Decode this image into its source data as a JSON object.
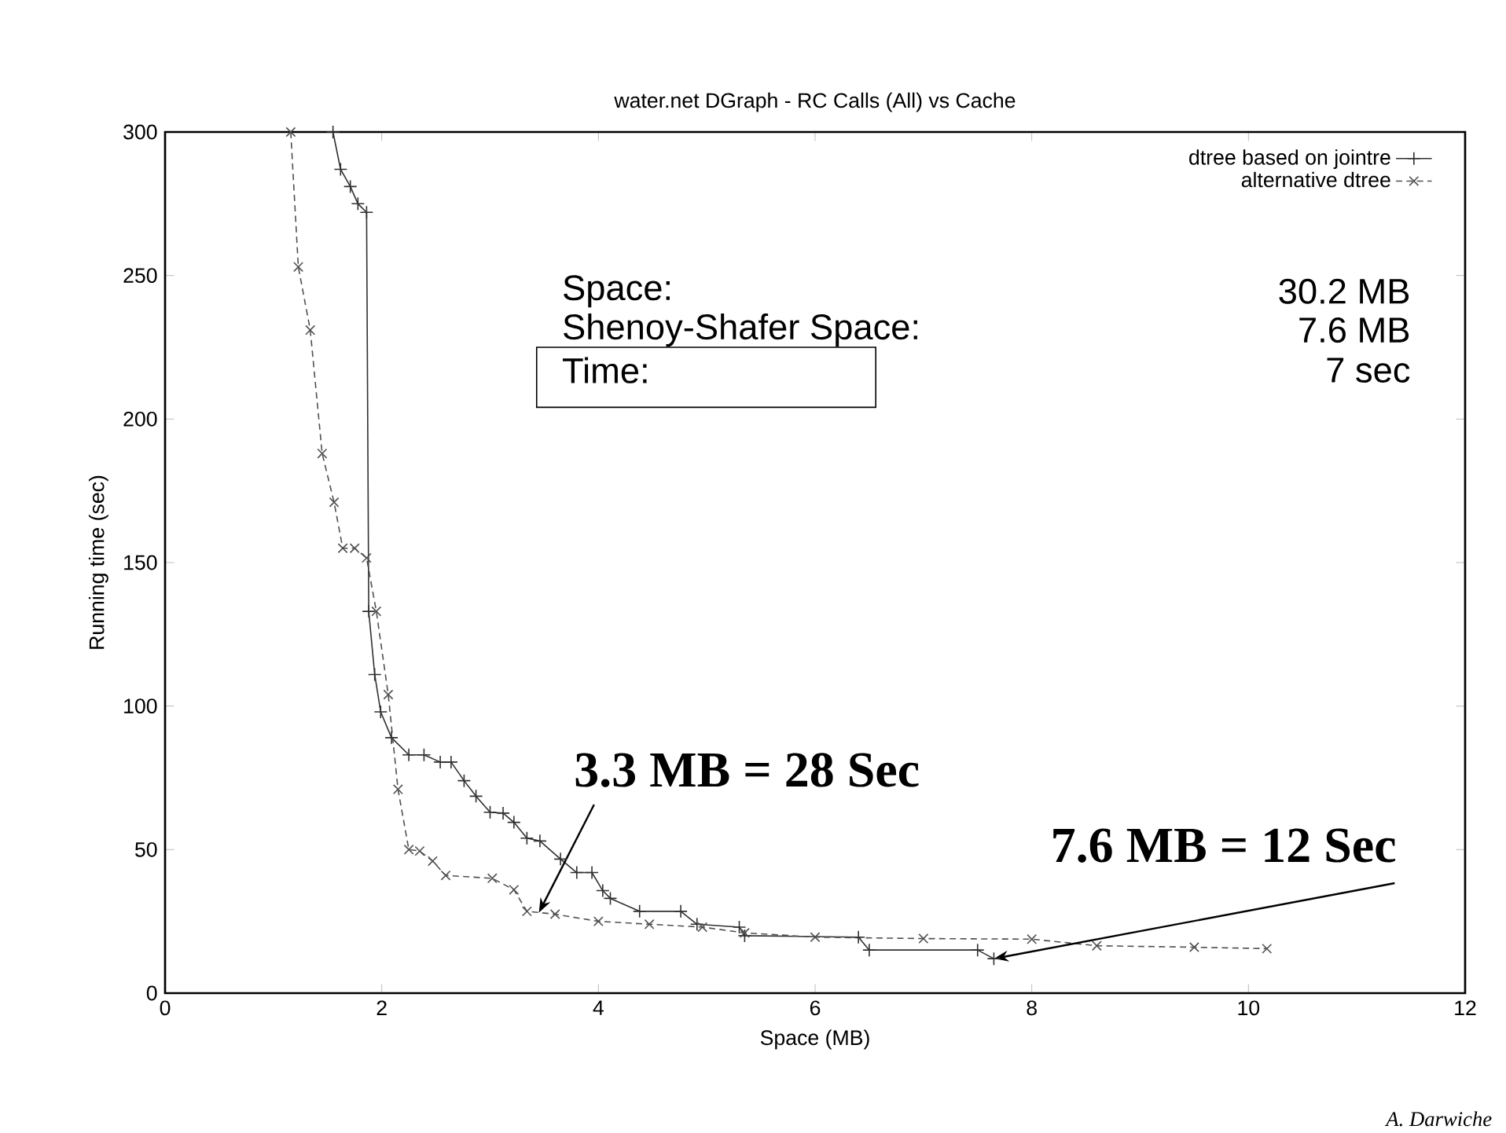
{
  "chart_data": {
    "type": "line",
    "title": "water.net DGraph - RC Calls (All) vs Cache",
    "xlabel": "Space (MB)",
    "ylabel": "Running time (sec)",
    "xlim": [
      0,
      12
    ],
    "xticks": [
      0,
      2,
      4,
      6,
      8,
      10,
      12
    ],
    "ylim": [
      0,
      300
    ],
    "yticks": [
      0,
      50,
      100,
      150,
      200,
      250,
      300
    ],
    "legend": "top right",
    "grid": false,
    "series": [
      {
        "name": "dtree based on jointre",
        "color": "#303030",
        "marker": "plus",
        "line_style": "solid",
        "x": [
          1.55,
          1.62,
          1.71,
          1.78,
          1.86,
          1.88,
          1.935,
          1.99,
          2.09,
          2.25,
          2.39,
          2.54,
          2.64,
          2.76,
          2.87,
          3.0,
          3.12,
          3.22,
          3.34,
          3.46,
          3.65,
          3.8,
          3.94,
          4.04,
          4.11,
          4.38,
          4.76,
          4.91,
          5.3,
          5.35,
          6.4,
          6.5,
          7.5,
          7.65
        ],
        "values": [
          300,
          287,
          281,
          275,
          272,
          133,
          111,
          98,
          89,
          83,
          83,
          80.5,
          80.5,
          74,
          68.6,
          63,
          62.7,
          59.5,
          54,
          53,
          46.7,
          42,
          42,
          35.7,
          33,
          28.5,
          28.5,
          24,
          23,
          20,
          19.5,
          15,
          15,
          12
        ]
      },
      {
        "name": "alternative dtree",
        "color": "#505050",
        "marker": "cross",
        "line_style": "dashed",
        "x": [
          1.16,
          1.23,
          1.34,
          1.45,
          1.56,
          1.64,
          1.75,
          1.86,
          1.95,
          2.06,
          2.15,
          2.25,
          2.35,
          2.47,
          2.59,
          3.02,
          3.22,
          3.34,
          3.6,
          4.0,
          4.47,
          4.96,
          5.35,
          6.0,
          7.0,
          8.0,
          8.6,
          9.5,
          10.17
        ],
        "values": [
          300,
          253,
          231,
          188,
          171,
          155,
          155,
          151.6,
          133,
          104,
          71,
          50,
          49.5,
          46,
          41,
          40,
          36,
          28.5,
          27.5,
          25,
          24,
          23,
          21,
          19.5,
          19,
          18.8,
          16.5,
          16,
          15.5
        ]
      }
    ],
    "annotations": [
      "Space:",
      "30.2 MB",
      "Shenoy-Shafer Space:",
      "7.6 MB",
      "Time:",
      "7 sec",
      {
        "text": "3.3 MB = 28 Sec",
        "x": 3.45,
        "y": 28
      },
      {
        "text": "7.6 MB = 12 Sec",
        "x": 7.65,
        "y": 12
      },
      "A. Darwiche"
    ]
  }
}
